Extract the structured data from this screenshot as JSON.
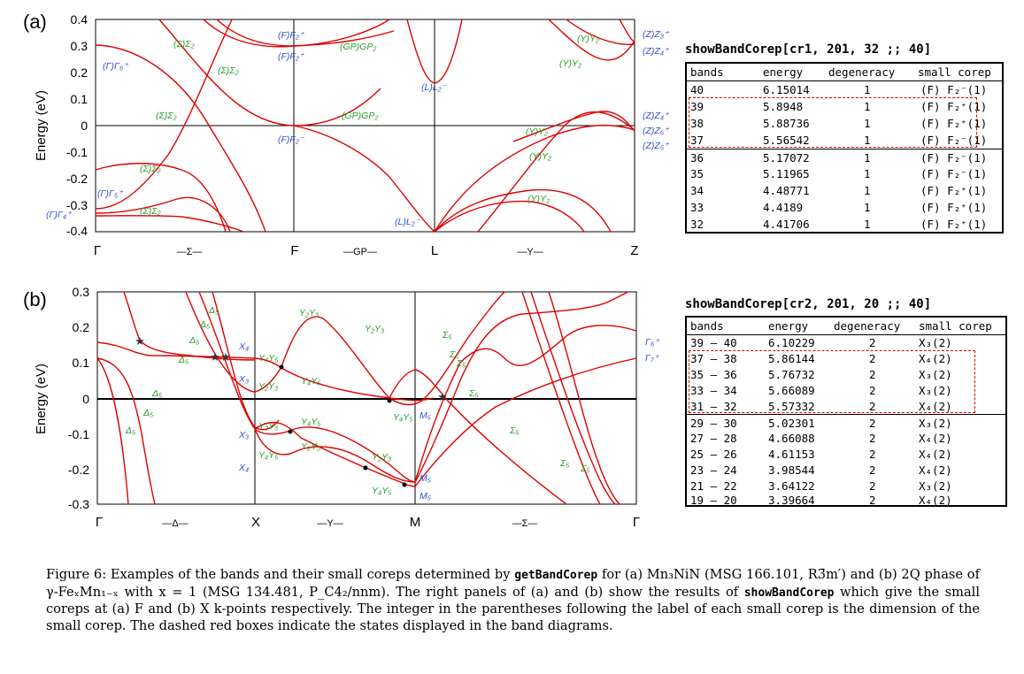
{
  "panel_a": {
    "letter": "(a)",
    "ylabel": "Energy (eV)",
    "yticks": [
      "0.4",
      "0.3",
      "0.2",
      "0.1",
      "0",
      "-0.1",
      "-0.2",
      "-0.3",
      "-0.4"
    ],
    "xticks": [
      "Γ",
      "—Σ—",
      "F",
      "—GP—",
      "L",
      "—Y—",
      "Z"
    ],
    "labels_green": [
      "(Σ)Σ₂",
      "(Σ)Σ₂",
      "(Σ)Σ₂",
      "(Σ)Σ₂",
      "(Σ)Σ₂",
      "(GP)GP₂",
      "(GP)GP₂",
      "(Y)Y₂",
      "(Y)Y₂",
      "(Y)Y₂",
      "(Y)Y₂",
      "(Y)Y₂"
    ],
    "labels_blue": [
      "(Γ)Γ₆⁺",
      "(Γ)Γ₅⁺",
      "(Γ)Γ₄⁺",
      "(F)F₂⁺",
      "(F)F₂⁺",
      "(F)F₂⁻",
      "(L)L₂⁻",
      "(L)L₂⁻",
      "(Z)Z₃⁺",
      "(Z)Z₄⁺",
      "(Z)Z₄⁺",
      "(Z)Z₆⁺",
      "(Z)Z₅⁺"
    ]
  },
  "panel_b": {
    "letter": "(b)",
    "ylabel": "Energy (eV)",
    "yticks": [
      "0.3",
      "0.2",
      "0.1",
      "0",
      "-0.1",
      "-0.2",
      "-0.3"
    ],
    "xticks": [
      "Γ",
      "—Δ—",
      "X",
      "—Y—",
      "M",
      "—Σ—",
      "Γ"
    ],
    "labels_green": [
      "Δ₅",
      "Δ₅",
      "Δ₅",
      "Δ₅",
      "Δ₅",
      "Δ₅",
      "Δ₅",
      "Y₂Y₃",
      "Y₂Y₃",
      "Y₄Y₅",
      "Y₂Y₃",
      "Y₄Y₅",
      "Y₂Y₃",
      "Y₄Y₅",
      "Y₂Y₃",
      "Y₄Y₅",
      "Y₂Y₃",
      "Y₄Y₅",
      "Y₄Y₅",
      "Σ₅",
      "Σ₅",
      "Σ₅",
      "Σ₅",
      "Σ₅",
      "Σ₅",
      "Σ₅"
    ],
    "labels_blue": [
      "X₄",
      "X₃",
      "X₃",
      "X₄",
      "M₅",
      "M₅",
      "M₅",
      "Γ₆⁺",
      "Γ₇⁺"
    ]
  },
  "table_a": {
    "command": "showBandCorep[cr1, 201, 32 ;; 40]",
    "headers": [
      "bands",
      "energy",
      "degeneracy",
      "small corep"
    ],
    "rows": [
      [
        "40",
        "6.15014",
        "1",
        "(F) F₂⁻(1)"
      ],
      [
        "39",
        "5.8948",
        "1",
        "(F) F₂⁺(1)"
      ],
      [
        "38",
        "5.88736",
        "1",
        "(F) F₂⁺(1)"
      ],
      [
        "37",
        "5.56542",
        "1",
        "(F) F₂⁻(1)"
      ],
      [
        "36",
        "5.17072",
        "1",
        "(F) F₂⁻(1)"
      ],
      [
        "35",
        "5.11965",
        "1",
        "(F) F₂⁻(1)"
      ],
      [
        "34",
        "4.48771",
        "1",
        "(F) F₂⁺(1)"
      ],
      [
        "33",
        "4.4189",
        "1",
        "(F) F₂⁺(1)"
      ],
      [
        "32",
        "4.41706",
        "1",
        "(F) F₂⁺(1)"
      ]
    ]
  },
  "table_b": {
    "command": "showBandCorep[cr2, 201, 20 ;; 40]",
    "headers": [
      "bands",
      "energy",
      "degeneracy",
      "small corep"
    ],
    "rows": [
      [
        "39 – 40",
        "6.10229",
        "2",
        "X₃(2)"
      ],
      [
        "37 – 38",
        "5.86144",
        "2",
        "X₄(2)"
      ],
      [
        "35 – 36",
        "5.76732",
        "2",
        "X₃(2)"
      ],
      [
        "33 – 34",
        "5.66089",
        "2",
        "X₃(2)"
      ],
      [
        "31 – 32",
        "5.57332",
        "2",
        "X₄(2)"
      ],
      [
        "29 – 30",
        "5.02301",
        "2",
        "X₃(2)"
      ],
      [
        "27 – 28",
        "4.66088",
        "2",
        "X₄(2)"
      ],
      [
        "25 – 26",
        "4.61153",
        "2",
        "X₄(2)"
      ],
      [
        "23 – 24",
        "3.98544",
        "2",
        "X₄(2)"
      ],
      [
        "21 – 22",
        "3.64122",
        "2",
        "X₃(2)"
      ],
      [
        "19 – 20",
        "3.39664",
        "2",
        "X₄(2)"
      ]
    ]
  },
  "caption": {
    "t1": "Figure 6: Examples of the bands and their small coreps determined by ",
    "cmd1": "getBandCorep",
    "t2": " for (a) Mn₃NiN (MSG 166.101, R3̄m′) and (b) 2Q phase of γ-FeₓMn₁₋ₓ with x = 1 (MSG 134.481, P_C4₂/nnm). The right panels of (a) and (b) show the results of ",
    "cmd2": "showBandCorep",
    "t3": " which give the small coreps at (a) F and (b) X k-points respectively. The integer in the parentheses following the label of each small corep is the dimension of the small corep. The dashed red boxes indicate the states displayed in the band diagrams."
  },
  "colors": {
    "band": "#e00000",
    "green_label": "#2a9a2a",
    "blue_label": "#3050d0",
    "dash": "#dd0000"
  }
}
